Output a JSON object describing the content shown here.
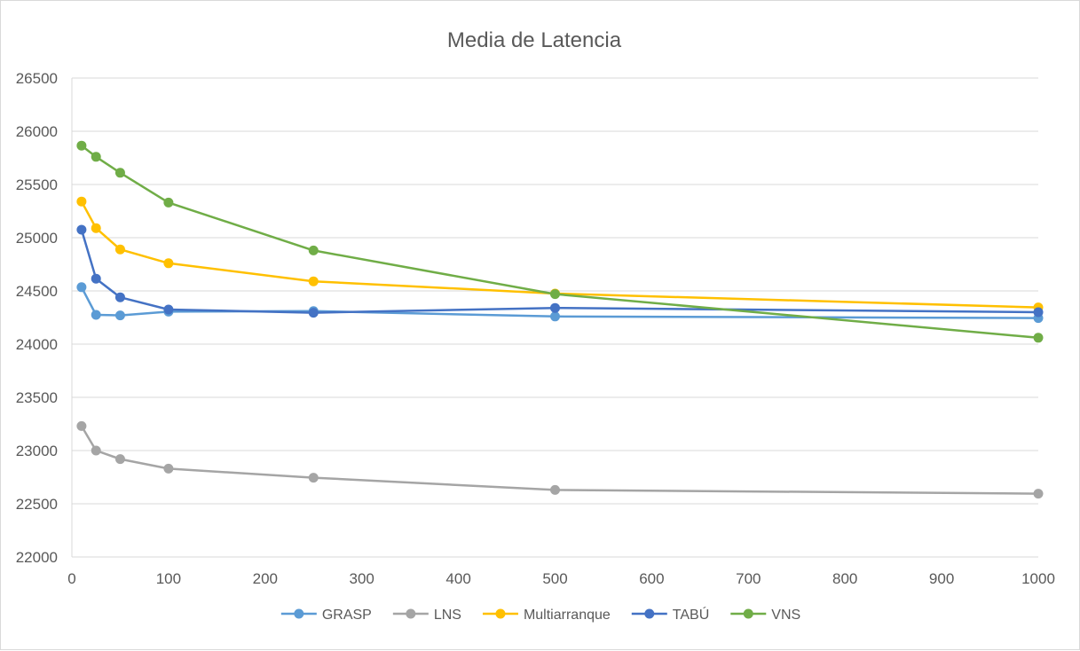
{
  "chart_data": {
    "type": "line",
    "title": "Media de Latencia",
    "xlabel": "",
    "ylabel": "",
    "x": [
      10,
      25,
      50,
      100,
      250,
      500,
      1000
    ],
    "xlim": [
      0,
      1000
    ],
    "ylim": [
      22000,
      26500
    ],
    "xticks": [
      0,
      100,
      200,
      300,
      400,
      500,
      600,
      700,
      800,
      900,
      1000
    ],
    "yticks": [
      22000,
      22500,
      23000,
      23500,
      24000,
      24500,
      25000,
      25500,
      26000,
      26500
    ],
    "grid": "horizontal",
    "legend_position": "bottom",
    "series": [
      {
        "name": "GRASP",
        "color": "#5b9bd5",
        "values": [
          24535,
          24275,
          24270,
          24305,
          24310,
          24260,
          24245
        ]
      },
      {
        "name": "LNS",
        "color": "#a5a5a5",
        "values": [
          23230,
          23000,
          22920,
          22830,
          22745,
          22630,
          22595
        ]
      },
      {
        "name": "Multiarranque",
        "color": "#ffc000",
        "values": [
          25340,
          25090,
          24890,
          24760,
          24590,
          24475,
          24345
        ]
      },
      {
        "name": "TABÚ",
        "color": "#4472c4",
        "values": [
          25075,
          24615,
          24440,
          24325,
          24295,
          24340,
          24300
        ]
      },
      {
        "name": "VNS",
        "color": "#70ad47",
        "values": [
          25865,
          25760,
          25610,
          25330,
          24880,
          24470,
          24060
        ]
      }
    ]
  },
  "style": {
    "grid_color": "#d9d9d9",
    "text_color": "#595959"
  }
}
